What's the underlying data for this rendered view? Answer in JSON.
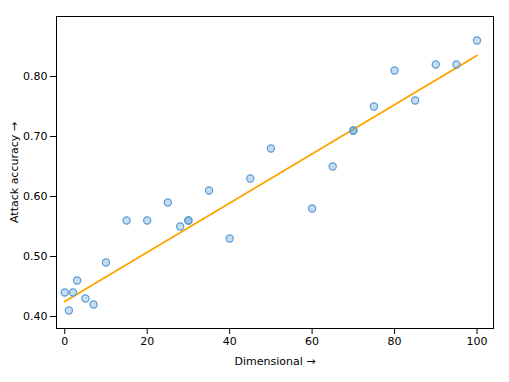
{
  "chart_data": {
    "type": "scatter",
    "xlabel": "Dimensional",
    "ylabel": "Attack accuracy",
    "xlim": [
      -2,
      104
    ],
    "ylim": [
      0.38,
      0.9
    ],
    "xticks": [
      0,
      20,
      40,
      60,
      80,
      100
    ],
    "yticks": [
      0.4,
      0.5,
      0.6,
      0.7,
      0.8
    ],
    "grid": false,
    "series": [
      {
        "type": "scatter",
        "marker": "circle",
        "color": "#5B9BD5",
        "x": [
          0,
          1,
          2,
          3,
          5,
          7,
          10,
          15,
          20,
          25,
          28,
          30,
          30,
          35,
          40,
          45,
          50,
          60,
          65,
          70,
          70,
          75,
          80,
          85,
          90,
          95,
          100
        ],
        "values": [
          0.44,
          0.41,
          0.44,
          0.46,
          0.43,
          0.42,
          0.49,
          0.56,
          0.56,
          0.59,
          0.55,
          0.56,
          0.56,
          0.61,
          0.53,
          0.63,
          0.68,
          0.58,
          0.65,
          0.71,
          0.71,
          0.75,
          0.81,
          0.76,
          0.82,
          0.82,
          0.86
        ]
      },
      {
        "type": "line",
        "line_style": "solid",
        "color": "#FFA500",
        "x": [
          0,
          100
        ],
        "values": [
          0.425,
          0.835
        ]
      }
    ]
  }
}
